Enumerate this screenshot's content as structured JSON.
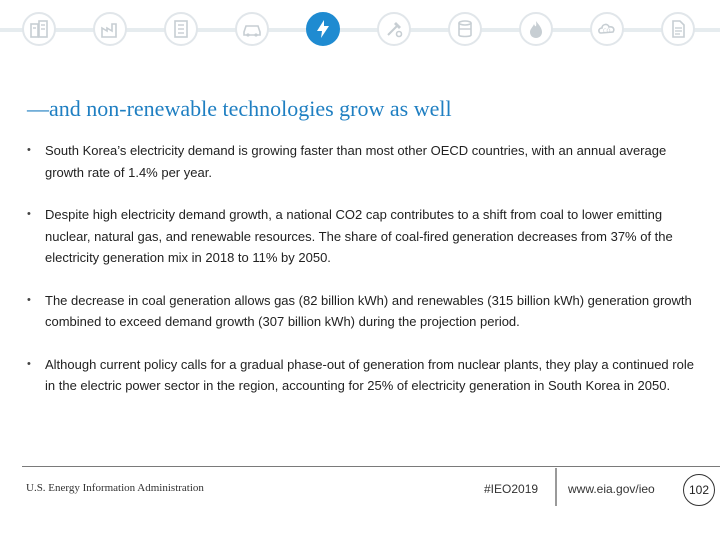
{
  "header": {
    "icons": [
      "building-icon",
      "factory-icon",
      "office-icon",
      "car-icon",
      "lightning-icon",
      "tools-icon",
      "oil-barrel-icon",
      "flame-icon",
      "co2-icon",
      "document-icon"
    ],
    "active_icon": "lightning-icon",
    "accent_color": "#1f8bd1"
  },
  "slide": {
    "title": "—and non-renewable technologies grow as well",
    "bullets": [
      "South Korea’s electricity demand is growing faster than most other OECD countries, with an annual average growth rate of 1.4% per year.",
      "Despite high electricity demand growth, a national CO2 cap contributes to a shift from coal to lower emitting nuclear, natural gas, and renewable resources. The share of coal-fired generation decreases from 37% of the electricity generation mix in 2018 to 11% by 2050.",
      "The decrease in coal generation allows gas (82 billion kWh) and renewables (315 billion kWh) generation growth combined to exceed demand growth (307 billion kWh) during the projection period.",
      "Although current policy calls for a gradual phase-out of generation from nuclear plants, they play a continued role in the electric power sector in the region, accounting for 25% of electricity generation in South Korea in 2050."
    ]
  },
  "footer": {
    "agency": "U.S. Energy Information Administration",
    "hashtag": "#IEO2019",
    "url": "www.eia.gov/ieo",
    "page_number": "102"
  }
}
